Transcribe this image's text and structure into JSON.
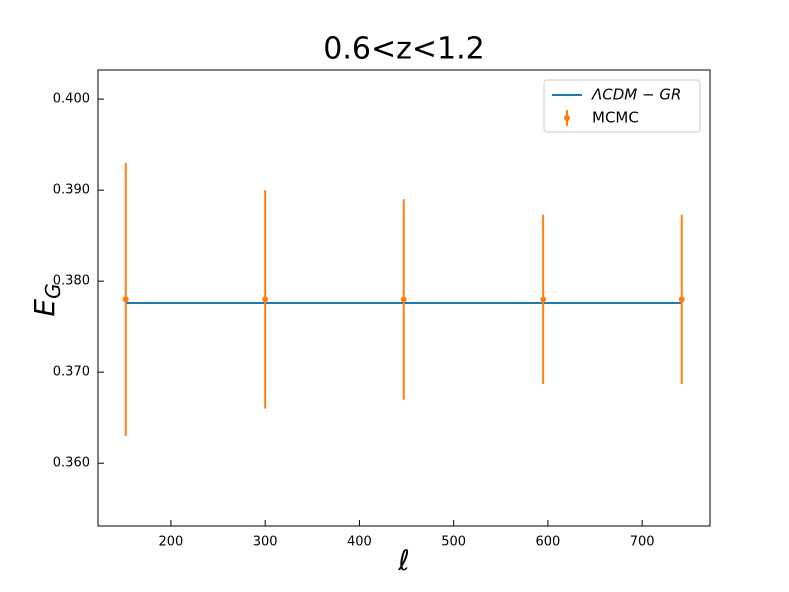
{
  "chart_data": {
    "type": "errorbar",
    "title": "0.6<z<1.2",
    "x_label": "ℓ",
    "y_label": {
      "main": "E",
      "sub": "G"
    },
    "xlim": [
      122.6,
      772
    ],
    "ylim": [
      0.3531,
      0.4032
    ],
    "xticks": [
      200,
      300,
      400,
      500,
      600,
      700
    ],
    "yticks": [
      {
        "value": 0.36,
        "label": "0.360"
      },
      {
        "value": 0.37,
        "label": "0.370"
      },
      {
        "value": 0.38,
        "label": "0.380"
      },
      {
        "value": 0.39,
        "label": "0.390"
      },
      {
        "value": 0.4,
        "label": "0.400"
      }
    ],
    "legend": "upper right",
    "series": [
      {
        "name": "ΛCDM − GR",
        "kind": "line",
        "color": "#1f77b4",
        "x": [
          152,
          742
        ],
        "values": [
          0.3776,
          0.3776
        ]
      },
      {
        "name": "MCMC",
        "kind": "errorbar",
        "color": "#ff7f0e",
        "x": [
          152,
          300,
          447,
          595,
          742
        ],
        "values": [
          0.378,
          0.378,
          0.378,
          0.378,
          0.378
        ],
        "errors": [
          0.015,
          0.012,
          0.011,
          0.0093,
          0.0093
        ]
      }
    ]
  }
}
